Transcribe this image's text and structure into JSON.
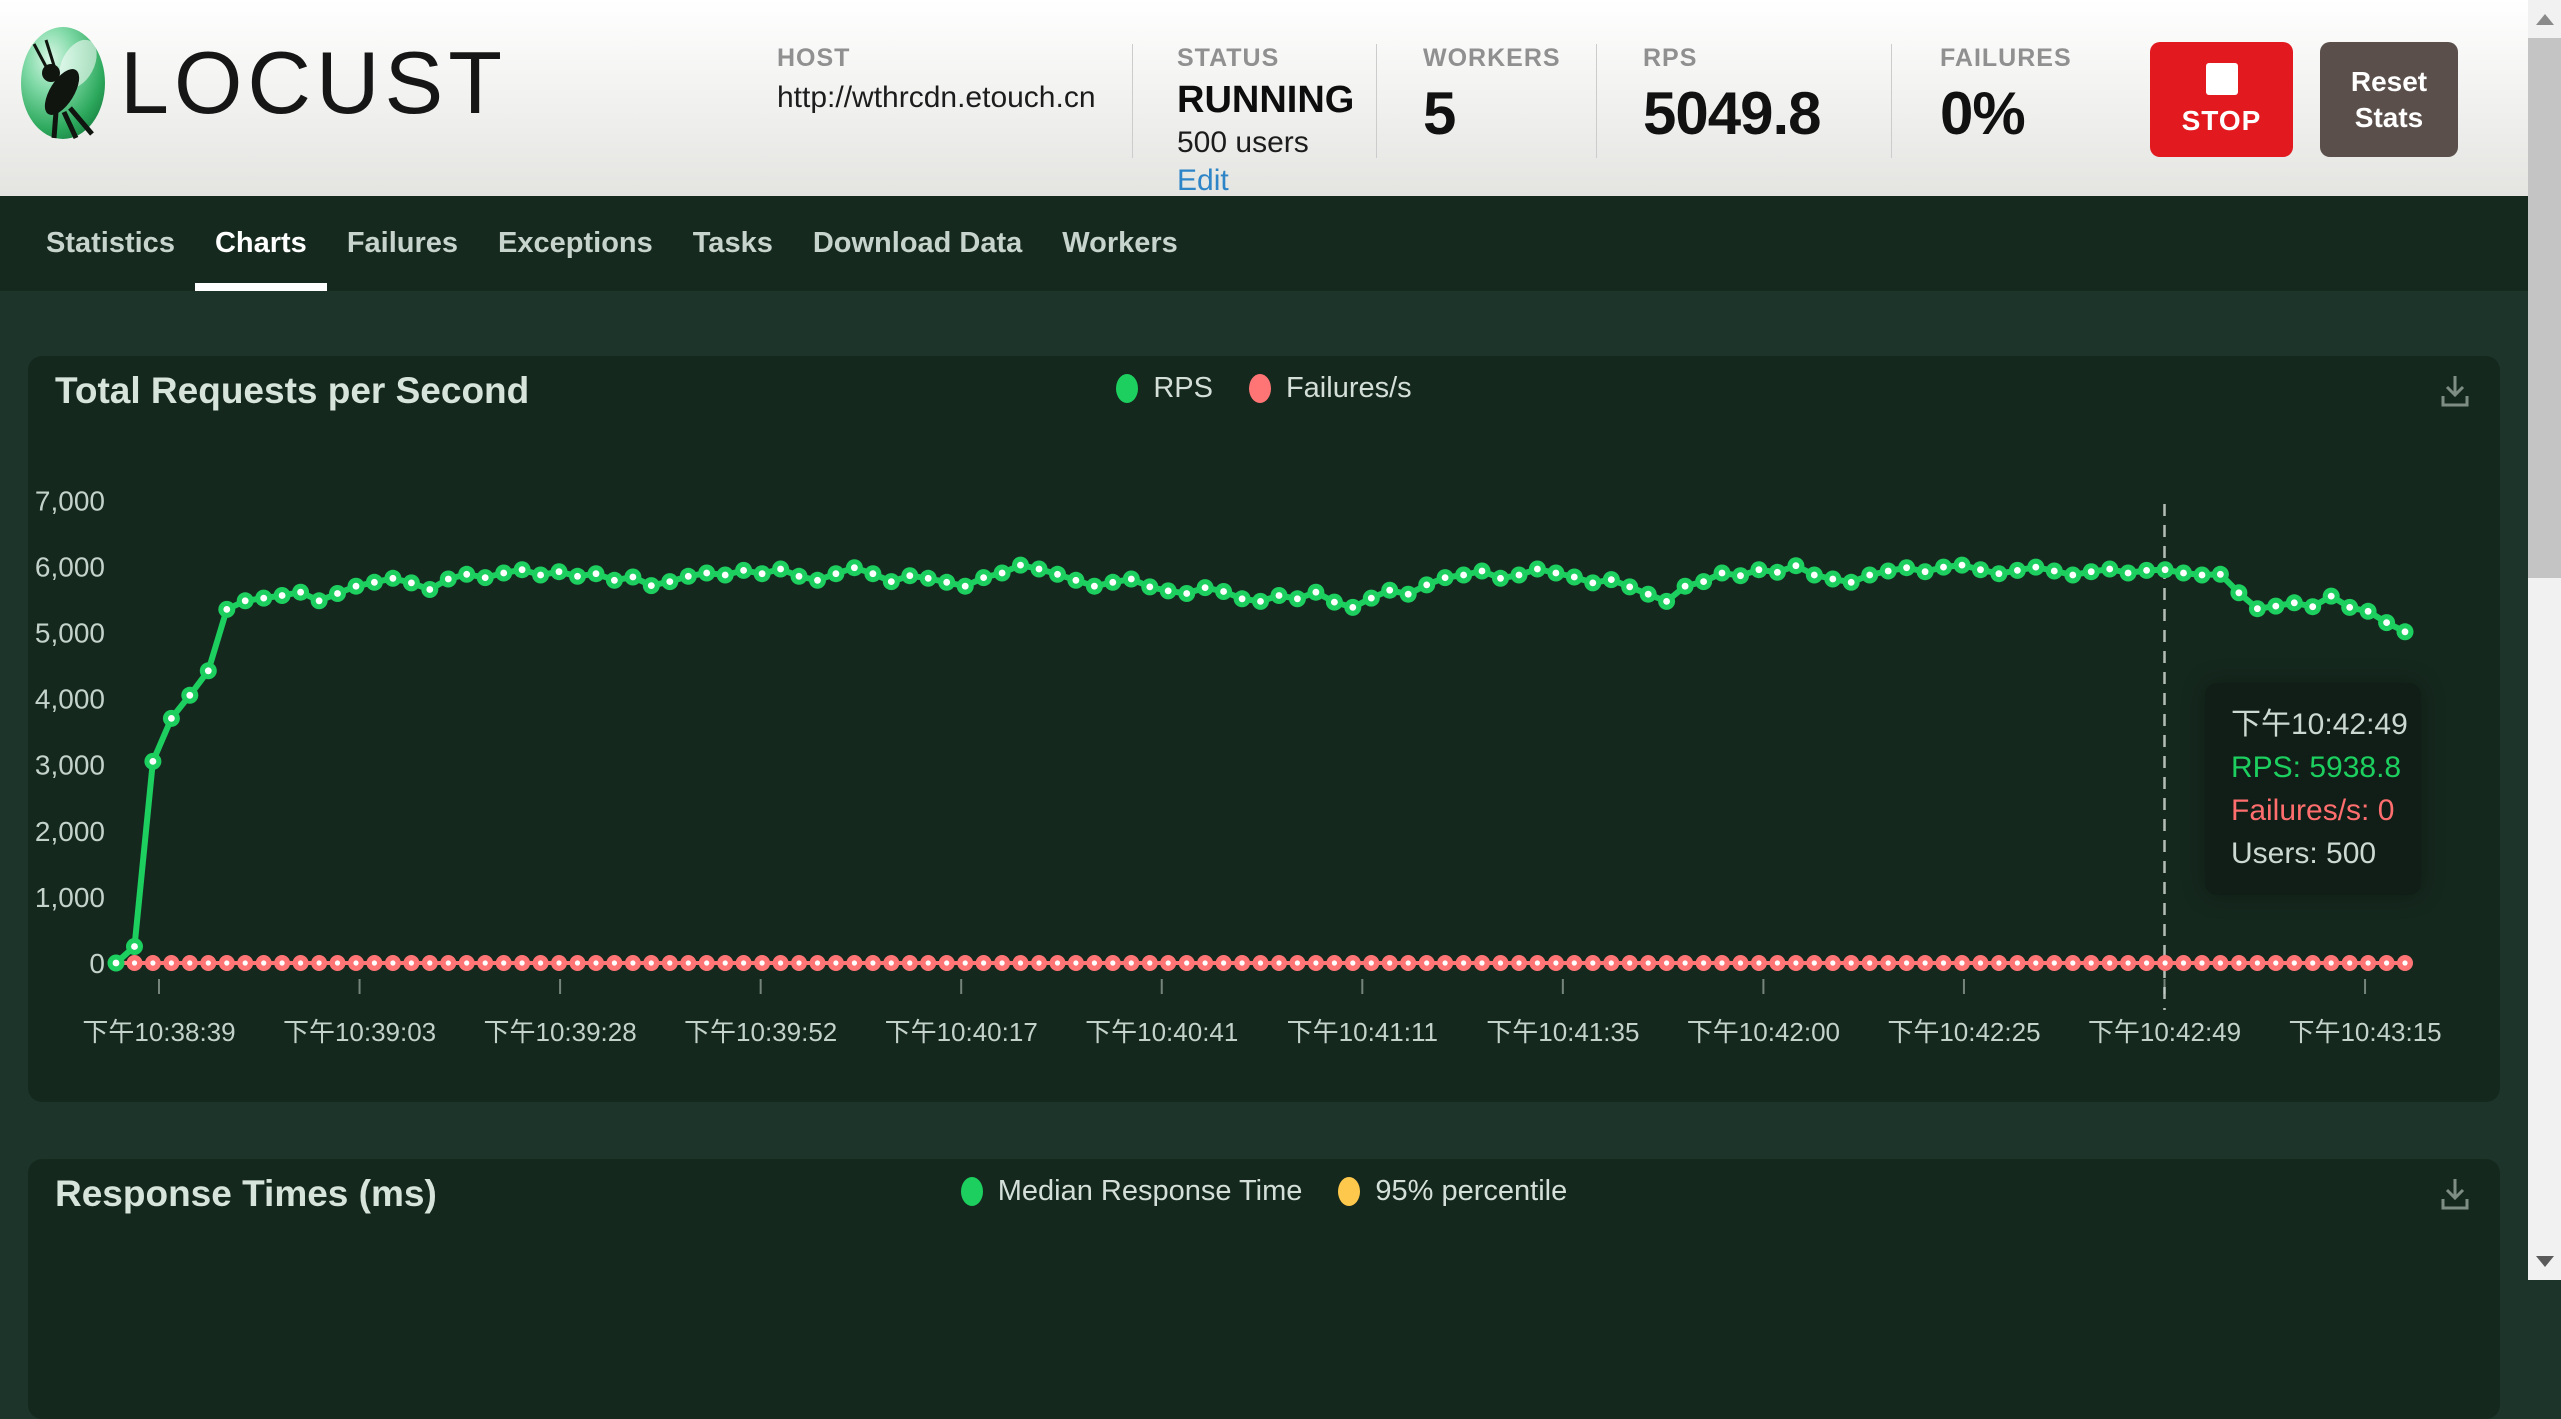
{
  "header": {
    "logo": "LOCUST",
    "stats": {
      "host": {
        "label": "HOST",
        "value": "http://wthrcdn.etouch.cn"
      },
      "status": {
        "label": "STATUS",
        "value": "RUNNING",
        "users": "500 users",
        "edit": "Edit"
      },
      "workers": {
        "label": "WORKERS",
        "value": "5"
      },
      "rps": {
        "label": "RPS",
        "value": "5049.8"
      },
      "failures": {
        "label": "FAILURES",
        "value": "0%"
      }
    },
    "buttons": {
      "stop": "STOP",
      "reset_line1": "Reset",
      "reset_line2": "Stats"
    }
  },
  "nav": {
    "tabs": [
      "Statistics",
      "Charts",
      "Failures",
      "Exceptions",
      "Tasks",
      "Download Data",
      "Workers"
    ],
    "active_index": 1
  },
  "panels": [
    {
      "title": "Total Requests per Second",
      "legend": [
        {
          "label": "RPS",
          "color": "#1ccf5f"
        },
        {
          "label": "Failures/s",
          "color": "#ff7575"
        }
      ]
    },
    {
      "title": "Response Times (ms)",
      "legend": [
        {
          "label": "Median Response Time",
          "color": "#1ccf5f"
        },
        {
          "label": "95% percentile",
          "color": "#fdc84b"
        }
      ]
    }
  ],
  "colors": {
    "rps_green": "#1ccf5f",
    "failures_red": "#ff7575",
    "percentile_yellow": "#fdc84b",
    "axis_text": "#c3d2ca",
    "stop_red": "#e21a1f",
    "edit_blue": "#2d85c7"
  },
  "icons": {
    "logo": "locust-insect-icon",
    "stop": "stop-square-icon",
    "download": "download-icon",
    "scroll_up": "scroll-up-arrow-icon",
    "scroll_down": "scroll-down-arrow-icon"
  },
  "chart_data": [
    {
      "type": "line",
      "title": "Total Requests per Second",
      "legend_position": "top-center",
      "grid": false,
      "ylim": [
        0,
        7000
      ],
      "y_tick_values": [
        0,
        1000,
        2000,
        3000,
        4000,
        5000,
        6000,
        7000
      ],
      "y_tick_labels": [
        "0",
        "1,000",
        "2,000",
        "3,000",
        "4,000",
        "5,000",
        "6,000",
        "7,000"
      ],
      "x_tick_labels": [
        "下午10:38:39",
        "下午10:39:03",
        "下午10:39:28",
        "下午10:39:52",
        "下午10:40:17",
        "下午10:40:41",
        "下午10:41:11",
        "下午10:41:35",
        "下午10:42:00",
        "下午10:42:25",
        "下午10:42:49",
        "下午10:43:15"
      ],
      "series": [
        {
          "name": "RPS",
          "color": "#1ccf5f",
          "values": [
            0,
            250,
            3050,
            3700,
            4050,
            4420,
            5350,
            5480,
            5520,
            5560,
            5610,
            5480,
            5590,
            5700,
            5760,
            5820,
            5750,
            5650,
            5810,
            5880,
            5830,
            5900,
            5950,
            5870,
            5920,
            5850,
            5890,
            5790,
            5840,
            5710,
            5770,
            5850,
            5900,
            5870,
            5940,
            5890,
            5960,
            5850,
            5790,
            5890,
            5980,
            5890,
            5770,
            5860,
            5820,
            5760,
            5700,
            5830,
            5900,
            6020,
            5960,
            5880,
            5790,
            5700,
            5760,
            5810,
            5690,
            5630,
            5590,
            5680,
            5620,
            5510,
            5470,
            5560,
            5510,
            5610,
            5460,
            5380,
            5520,
            5640,
            5580,
            5720,
            5830,
            5870,
            5930,
            5820,
            5870,
            5960,
            5900,
            5840,
            5750,
            5800,
            5690,
            5580,
            5470,
            5700,
            5770,
            5900,
            5860,
            5950,
            5910,
            6010,
            5870,
            5810,
            5760,
            5870,
            5930,
            5980,
            5920,
            5990,
            6020,
            5950,
            5890,
            5940,
            5990,
            5930,
            5870,
            5920,
            5960,
            5900,
            5938.8,
            5950,
            5900,
            5870,
            5880,
            5600,
            5360,
            5400,
            5450,
            5390,
            5550,
            5380,
            5320,
            5150,
            5010
          ]
        },
        {
          "name": "Failures/s",
          "color": "#ff7575",
          "values": [
            0,
            0,
            0,
            0,
            0,
            0,
            0,
            0,
            0,
            0,
            0,
            0,
            0,
            0,
            0,
            0,
            0,
            0,
            0,
            0,
            0,
            0,
            0,
            0,
            0,
            0,
            0,
            0,
            0,
            0,
            0,
            0,
            0,
            0,
            0,
            0,
            0,
            0,
            0,
            0,
            0,
            0,
            0,
            0,
            0,
            0,
            0,
            0,
            0,
            0,
            0,
            0,
            0,
            0,
            0,
            0,
            0,
            0,
            0,
            0,
            0,
            0,
            0,
            0,
            0,
            0,
            0,
            0,
            0,
            0,
            0,
            0,
            0,
            0,
            0,
            0,
            0,
            0,
            0,
            0,
            0,
            0,
            0,
            0,
            0,
            0,
            0,
            0,
            0,
            0,
            0,
            0,
            0,
            0,
            0,
            0,
            0,
            0,
            0,
            0,
            0,
            0,
            0,
            0,
            0,
            0,
            0,
            0,
            0,
            0,
            0,
            0,
            0,
            0,
            0,
            0,
            0,
            0,
            0,
            0,
            0,
            0,
            0,
            0,
            0
          ]
        }
      ],
      "crosshair": {
        "tick_index": 10,
        "style": "dashed"
      },
      "tooltip": {
        "lines": [
          {
            "text": "下午10:42:49",
            "color": "#ccd9d2"
          },
          {
            "text": "RPS: 5938.8",
            "color": "#1ccf5f"
          },
          {
            "text": "Failures/s: 0",
            "color": "#ff6e6e"
          },
          {
            "text": "Users: 500",
            "color": "#ccd9d2"
          }
        ]
      }
    },
    {
      "type": "line",
      "title": "Response Times (ms)",
      "legend_position": "top-center",
      "series": [
        {
          "name": "Median Response Time",
          "color": "#1ccf5f"
        },
        {
          "name": "95% percentile",
          "color": "#fdc84b"
        }
      ]
    }
  ]
}
